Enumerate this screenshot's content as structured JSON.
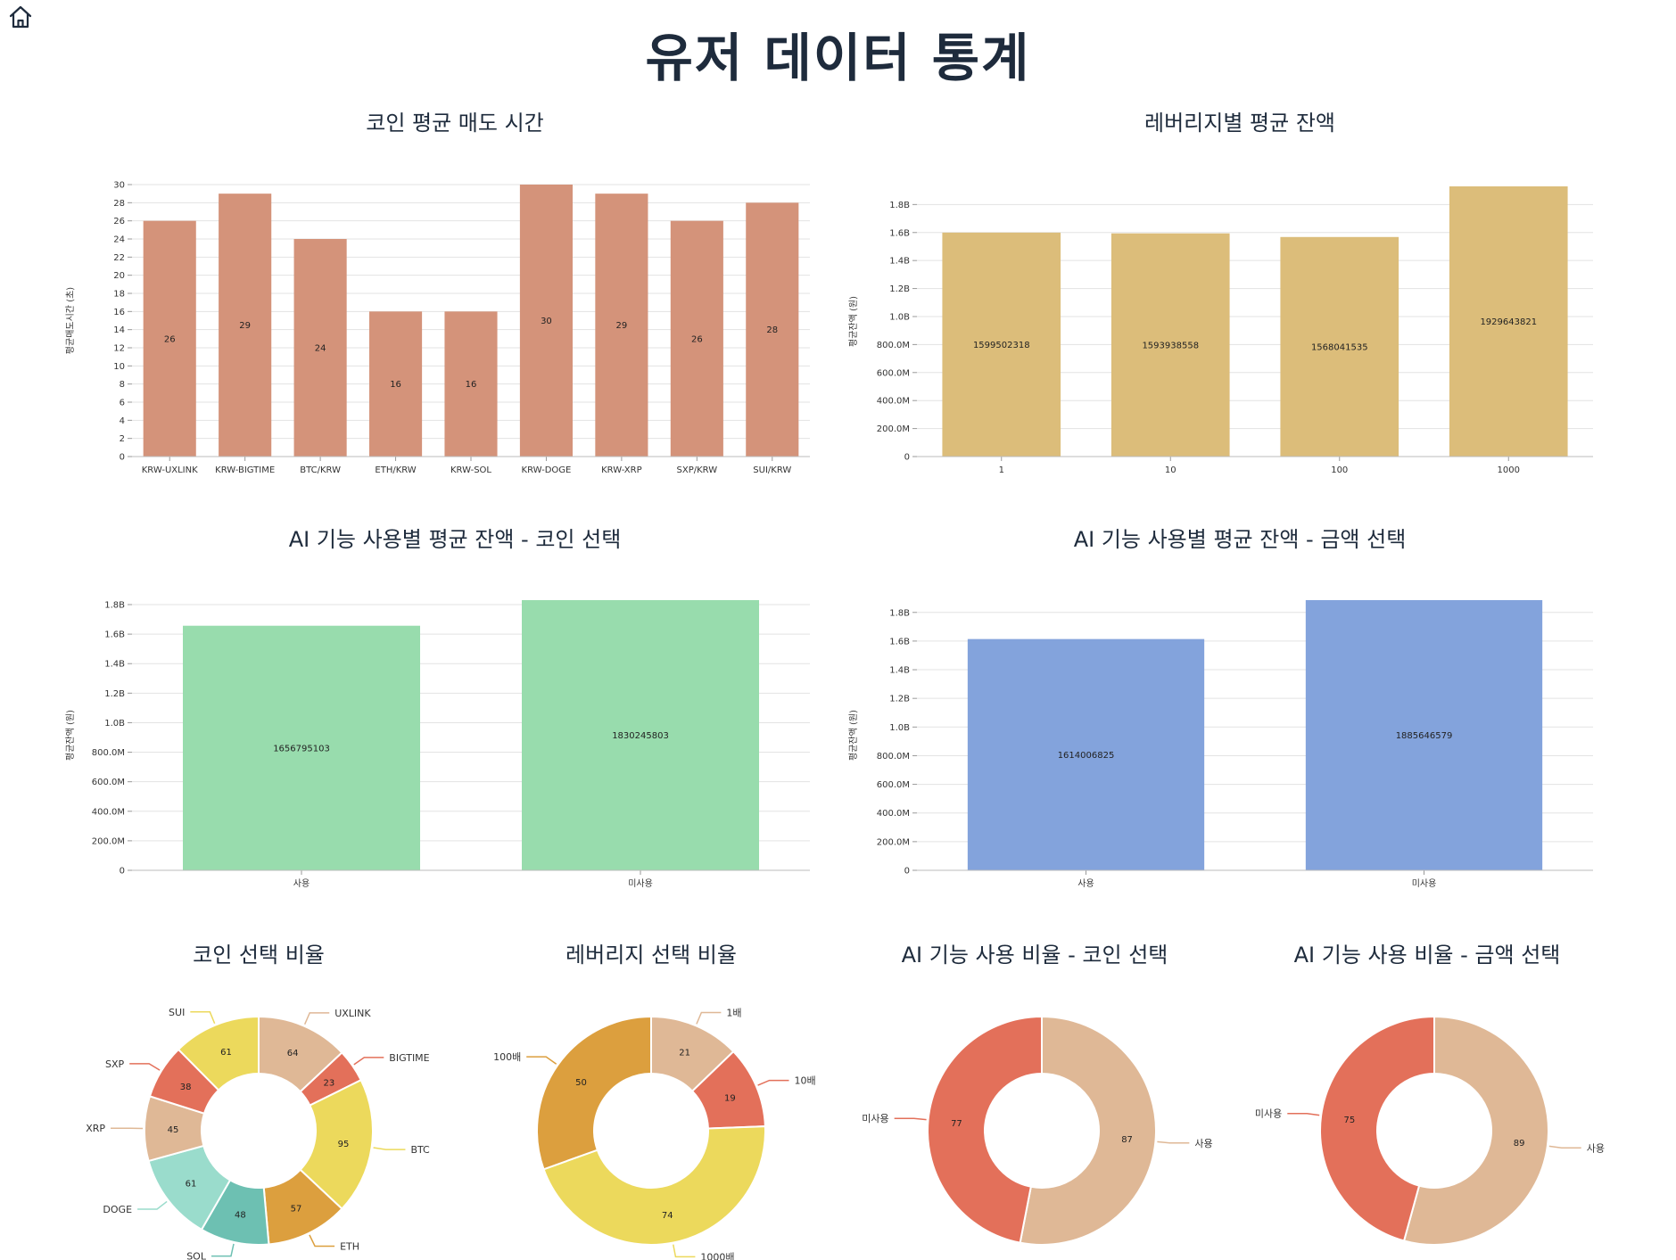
{
  "page_title": "유저 데이터 통계",
  "icons": {
    "home": "home-icon"
  },
  "chart_data": [
    {
      "id": "coin_sell_time",
      "type": "bar",
      "title": "코인 평균 매도 시간",
      "ylabel": "평균매도시간 (초)",
      "xlabel": "",
      "color": "#d4937a",
      "categories": [
        "KRW-UXLINK",
        "KRW-BIGTIME",
        "BTC/KRW",
        "ETH/KRW",
        "KRW-SOL",
        "KRW-DOGE",
        "KRW-XRP",
        "SXP/KRW",
        "SUI/KRW"
      ],
      "values": [
        26,
        29,
        24,
        16,
        16,
        30,
        29,
        26,
        28
      ],
      "ylim": [
        0,
        30
      ],
      "yticks": [
        0,
        2,
        4,
        6,
        8,
        10,
        12,
        14,
        16,
        18,
        20,
        22,
        24,
        26,
        28,
        30
      ],
      "ytick_labels": [
        "0",
        "2",
        "4",
        "6",
        "8",
        "10",
        "12",
        "14",
        "16",
        "18",
        "20",
        "22",
        "24",
        "26",
        "28",
        "30"
      ],
      "grid": true
    },
    {
      "id": "leverage_balance",
      "type": "bar",
      "title": "레버리지별 평균 잔액",
      "ylabel": "평균잔액 (원)",
      "xlabel": "",
      "color": "#dcbd7a",
      "categories": [
        "1",
        "10",
        "100",
        "1000"
      ],
      "values": [
        1599502318,
        1593938558,
        1568041535,
        1929643821
      ],
      "ylim": [
        0,
        1929643821
      ],
      "yticks": [
        0,
        200000000,
        400000000,
        600000000,
        800000000,
        1000000000,
        1200000000,
        1400000000,
        1600000000,
        1800000000
      ],
      "ytick_labels": [
        "0",
        "200.0M",
        "400.0M",
        "600.0M",
        "800.0M",
        "1.0B",
        "1.2B",
        "1.4B",
        "1.6B",
        "1.8B"
      ],
      "grid": true
    },
    {
      "id": "ai_coin_balance",
      "type": "bar",
      "title": "AI 기능 사용별 평균 잔액 - 코인 선택",
      "ylabel": "평균잔액 (원)",
      "xlabel": "",
      "color": "#98dcad",
      "categories": [
        "사용",
        "미사용"
      ],
      "values": [
        1656795103,
        1830245803
      ],
      "ylim": [
        0,
        1830245803
      ],
      "yticks": [
        0,
        200000000,
        400000000,
        600000000,
        800000000,
        1000000000,
        1200000000,
        1400000000,
        1600000000,
        1800000000
      ],
      "ytick_labels": [
        "0",
        "200.0M",
        "400.0M",
        "600.0M",
        "800.0M",
        "1.0B",
        "1.2B",
        "1.4B",
        "1.6B",
        "1.8B"
      ],
      "grid": true
    },
    {
      "id": "ai_amount_balance",
      "type": "bar",
      "title": "AI 기능 사용별 평균 잔액 - 금액 선택",
      "ylabel": "평균잔액 (원)",
      "xlabel": "",
      "color": "#83a3dc",
      "categories": [
        "사용",
        "미사용"
      ],
      "values": [
        1614006825,
        1885646579
      ],
      "ylim": [
        0,
        1885646579
      ],
      "yticks": [
        0,
        200000000,
        400000000,
        600000000,
        800000000,
        1000000000,
        1200000000,
        1400000000,
        1600000000,
        1800000000
      ],
      "ytick_labels": [
        "0",
        "200.0M",
        "400.0M",
        "600.0M",
        "800.0M",
        "1.0B",
        "1.2B",
        "1.4B",
        "1.6B",
        "1.8B"
      ],
      "grid": true
    },
    {
      "id": "coin_ratio",
      "type": "pie",
      "title": "코인 선택 비율",
      "labels": [
        "UXLINK",
        "BIGTIME",
        "BTC",
        "ETH",
        "SOL",
        "DOGE",
        "XRP",
        "SXP",
        "SUI"
      ],
      "values": [
        64,
        23,
        95,
        57,
        48,
        61,
        45,
        38,
        61
      ],
      "colors": [
        "#dfb896",
        "#e3705a",
        "#ecd95c",
        "#dc9f3e",
        "#6dc0b2",
        "#9adccc",
        "#dfb896",
        "#e3705a",
        "#ecd95c"
      ]
    },
    {
      "id": "leverage_ratio",
      "type": "pie",
      "title": "레버리지 선택 비율",
      "labels": [
        "1배",
        "10배",
        "1000배",
        "100배"
      ],
      "values": [
        21,
        19,
        74,
        50
      ],
      "colors": [
        "#dfb896",
        "#e3705a",
        "#ecd95c",
        "#dc9f3e"
      ]
    },
    {
      "id": "ai_coin_ratio",
      "type": "pie",
      "title": "AI 기능 사용 비율 - 코인 선택",
      "labels": [
        "사용",
        "미사용"
      ],
      "values": [
        87,
        77
      ],
      "colors": [
        "#dfb896",
        "#e3705a"
      ]
    },
    {
      "id": "ai_amount_ratio",
      "type": "pie",
      "title": "AI 기능 사용 비율 - 금액 선택",
      "labels": [
        "사용",
        "미사용"
      ],
      "values": [
        89,
        75
      ],
      "colors": [
        "#dfb896",
        "#e3705a"
      ]
    }
  ]
}
